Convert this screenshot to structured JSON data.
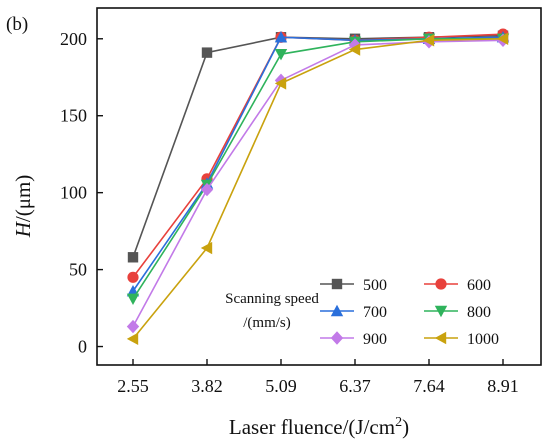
{
  "chart_data": {
    "type": "line",
    "panel_label": "(b)",
    "xlabel": "Laser fluence/(J/cm",
    "xlabel_sup": "2",
    "xlabel_tail": ")",
    "ylabel_italic": "H",
    "ylabel_rest": "/(μm)",
    "categories": [
      "2.55",
      "3.82",
      "5.09",
      "6.37",
      "7.64",
      "8.91"
    ],
    "ylim": [
      -12,
      220
    ],
    "yticks": [
      0,
      50,
      100,
      150,
      200
    ],
    "ytick_labels": [
      "0",
      "50",
      "100",
      "150",
      "200"
    ],
    "grid": false,
    "legend": {
      "position": "bottom-right",
      "title_lines": [
        "Scanning speed",
        "/(mm/s)"
      ]
    },
    "series": [
      {
        "name": "500",
        "color": "#555555",
        "marker": "square",
        "values": [
          58,
          191,
          201,
          200,
          201,
          202
        ]
      },
      {
        "name": "600",
        "color": "#e8413c",
        "marker": "circle",
        "values": [
          45,
          109,
          201,
          199,
          201,
          203
        ]
      },
      {
        "name": "700",
        "color": "#2a6fdb",
        "marker": "triangle-up",
        "values": [
          36,
          106,
          201,
          199,
          200,
          201
        ]
      },
      {
        "name": "800",
        "color": "#2fb35c",
        "marker": "triangle-down",
        "values": [
          31,
          105,
          190,
          198,
          200,
          200
        ]
      },
      {
        "name": "900",
        "color": "#c27ae8",
        "marker": "diamond",
        "values": [
          13,
          102,
          173,
          196,
          198,
          199
        ]
      },
      {
        "name": "1000",
        "color": "#c9a20e",
        "marker": "triangle-left",
        "values": [
          5,
          64,
          171,
          193,
          199,
          200
        ]
      }
    ]
  }
}
